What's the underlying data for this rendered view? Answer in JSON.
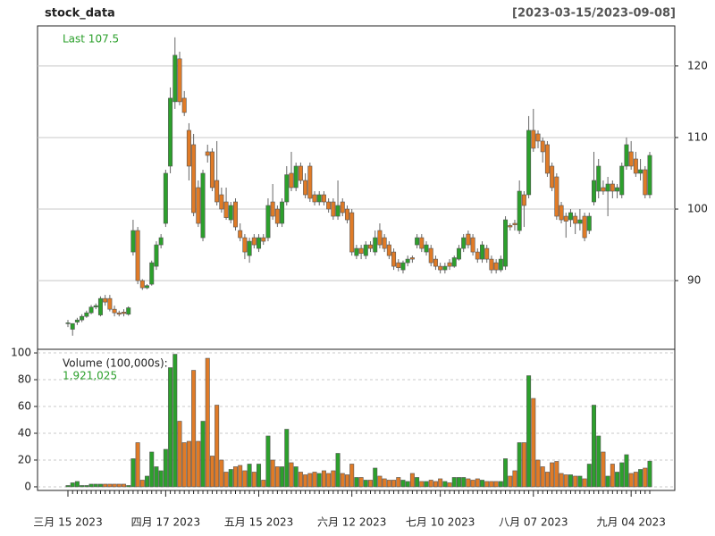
{
  "chart_data": {
    "type": "candlestick",
    "title": "stock_data",
    "subtitle": "[2023-03-15/2023-09-08]",
    "last_label": "Last 107.5",
    "categories": [
      "三月 15 2023",
      null,
      null,
      null,
      null,
      null,
      null,
      null,
      null,
      null,
      null,
      null,
      null,
      null,
      null,
      null,
      null,
      null,
      null,
      null,
      null,
      "四月 17 2023",
      null,
      null,
      null,
      null,
      null,
      null,
      null,
      null,
      null,
      null,
      null,
      null,
      null,
      null,
      null,
      null,
      null,
      null,
      null,
      "五月 15 2023",
      null,
      null,
      null,
      null,
      null,
      null,
      null,
      null,
      null,
      null,
      null,
      null,
      null,
      null,
      null,
      null,
      null,
      null,
      null,
      "六月 12 2023",
      null,
      null,
      null,
      null,
      null,
      null,
      null,
      null,
      null,
      null,
      null,
      null,
      null,
      null,
      null,
      null,
      null,
      null,
      "七月 10 2023",
      null,
      null,
      null,
      null,
      null,
      null,
      null,
      null,
      null,
      null,
      null,
      null,
      null,
      null,
      null,
      null,
      null,
      null,
      null,
      "八月 07 2023",
      null,
      null,
      null,
      null,
      null,
      null,
      null,
      null,
      null,
      null,
      null,
      null,
      null,
      null,
      null,
      null,
      null,
      null,
      null,
      null,
      "九月 04 2023",
      null,
      null,
      null,
      null
    ],
    "open": [
      84,
      83.2,
      84.2,
      84.5,
      85,
      85.5,
      86.3,
      85.2,
      87.5,
      87.5,
      86,
      85.5,
      85.6,
      85.3,
      94,
      97,
      90,
      89,
      89.5,
      92,
      95,
      98,
      106,
      115,
      121,
      115.5,
      111,
      109,
      103,
      96,
      108,
      108,
      104,
      102,
      101,
      98.5,
      101,
      97,
      96,
      93.5,
      96,
      94.5,
      96,
      96,
      101,
      100,
      98,
      101,
      105,
      103,
      106,
      104,
      106,
      102,
      101,
      102,
      101,
      101,
      99,
      101,
      100,
      99.5,
      93.5,
      94.5,
      93.5,
      95,
      94,
      97,
      96,
      95,
      94,
      92.5,
      91.5,
      92.5,
      93.2,
      95,
      96,
      94,
      94.5,
      93,
      92,
      91.5,
      92.5,
      92,
      93,
      94.5,
      96.5,
      96,
      94,
      93,
      94.5,
      93,
      92.5,
      91.5,
      92,
      97.7,
      98,
      97,
      102,
      102,
      111,
      110.5,
      109.5,
      109,
      106,
      104.5,
      100.5,
      99,
      98.5,
      99,
      98,
      99,
      97,
      101,
      102.5,
      103,
      102.5,
      103.5,
      102.5,
      102,
      106,
      108,
      107,
      105,
      105.5,
      102
    ],
    "high": [
      84.5,
      84,
      84.8,
      85.3,
      85.8,
      86.6,
      86.8,
      87.8,
      88,
      88,
      86.5,
      85.8,
      86,
      86.4,
      98.5,
      97.5,
      90.2,
      89.5,
      92.8,
      95.5,
      96.5,
      105.5,
      117,
      124,
      122,
      116.5,
      112,
      110.5,
      104,
      105.5,
      109,
      108.5,
      109.5,
      103,
      103,
      101,
      101.5,
      98,
      96.5,
      96,
      96.5,
      96.5,
      96.5,
      101.5,
      103.5,
      100.5,
      101.5,
      106,
      108,
      106.5,
      106.5,
      105,
      106.5,
      102.5,
      102.5,
      102.5,
      101.5,
      101.5,
      104,
      101.5,
      100.5,
      100,
      95,
      95,
      95.5,
      95.5,
      97,
      98,
      96.5,
      95.5,
      94.5,
      93,
      92.8,
      93.5,
      93.5,
      96.5,
      96.5,
      95.5,
      95,
      93.5,
      92.5,
      92.5,
      93,
      93.5,
      95,
      96.5,
      97,
      96.5,
      94.5,
      95.5,
      95,
      93.5,
      93,
      93.5,
      99,
      98,
      98.5,
      104,
      102.5,
      113,
      114,
      111,
      110,
      109.5,
      106.5,
      105,
      101,
      99.5,
      100,
      99.5,
      100,
      99.5,
      99.5,
      108,
      107,
      104,
      104.5,
      104,
      103.5,
      106.5,
      110,
      109.5,
      108,
      107,
      106,
      108
    ],
    "low": [
      83.5,
      82.3,
      83.8,
      84.2,
      84.8,
      85.3,
      86,
      85,
      86.5,
      85.7,
      85,
      85,
      85,
      85.1,
      93.5,
      89.5,
      88.7,
      88.8,
      89.3,
      91.5,
      94.5,
      97.5,
      105,
      114,
      114.5,
      113,
      104,
      99,
      97.5,
      95.5,
      106.5,
      102.5,
      100.5,
      99.5,
      98.5,
      98,
      97,
      95.5,
      93,
      92.5,
      94.5,
      94,
      95,
      95.5,
      98.5,
      97.5,
      97.5,
      100.5,
      102.5,
      102.5,
      103.5,
      101.5,
      101,
      100.5,
      100.5,
      100.5,
      99.5,
      98.5,
      98.5,
      99,
      98,
      93.5,
      93,
      93,
      93,
      94,
      93.5,
      94.5,
      94,
      93,
      91.5,
      91.3,
      91,
      92,
      92.5,
      94.5,
      94,
      93.5,
      92,
      91.5,
      91,
      91,
      91.5,
      91.8,
      92.8,
      94,
      94.5,
      93.5,
      92.5,
      92.5,
      92.5,
      91,
      91,
      91.2,
      91.5,
      97,
      97,
      96.5,
      97.5,
      101.5,
      108,
      108.5,
      106.5,
      104.5,
      102.5,
      98.5,
      98,
      96,
      97.5,
      96.5,
      97,
      95.5,
      96.5,
      100.5,
      101.5,
      102,
      99,
      101.5,
      101.5,
      101.5,
      105.5,
      105.5,
      104.5,
      104,
      101.5,
      101.5
    ],
    "close": [
      84.1,
      84,
      84.5,
      85,
      85.5,
      86.3,
      86.5,
      87.5,
      87,
      86,
      85.5,
      85.3,
      85.4,
      86.2,
      97,
      90,
      89,
      89.3,
      92.5,
      95,
      96,
      105,
      115.5,
      121.5,
      115,
      113.5,
      106,
      99.5,
      98,
      105,
      107.5,
      103,
      101,
      100,
      98.8,
      100.5,
      97.5,
      96,
      94,
      95.5,
      95,
      96,
      95.5,
      100.5,
      99,
      98,
      101,
      104.8,
      103,
      106,
      104,
      102,
      101.5,
      101,
      102,
      101,
      100,
      99,
      100.5,
      99.5,
      98.5,
      94,
      94.5,
      93.8,
      95,
      94.5,
      96,
      95,
      94.5,
      93.5,
      92,
      91.8,
      92.5,
      93,
      93,
      96,
      94.5,
      95,
      92.5,
      92,
      91.5,
      92,
      92,
      93.2,
      94.5,
      96,
      95,
      94,
      93,
      95,
      93,
      91.5,
      91.5,
      93,
      98.5,
      97.5,
      97.8,
      102.5,
      100.5,
      111,
      108.5,
      109.5,
      108,
      105,
      103,
      99,
      98.5,
      98.3,
      99.5,
      98,
      98.5,
      96,
      99,
      104,
      106,
      102.5,
      103.5,
      102.5,
      103,
      106,
      109,
      106,
      105,
      105.5,
      102,
      107.5
    ],
    "up_color": "#2ca02c",
    "down_color": "#e07b27",
    "ylim": [
      80.4,
      125.6
    ],
    "yticks": [
      90,
      100,
      110,
      120
    ],
    "grid": true,
    "volume": {
      "label": "Volume (100,000s):",
      "last_label": "1,921,025",
      "values": [
        1,
        3,
        4,
        1,
        1,
        2,
        2,
        2,
        2,
        2,
        2,
        2,
        2,
        1,
        21,
        33,
        5,
        8,
        26,
        15,
        12,
        28,
        89,
        99,
        49,
        33,
        34,
        87,
        34,
        49,
        96,
        23,
        61,
        20,
        11,
        13,
        15,
        16,
        12,
        17,
        11,
        17,
        5,
        38,
        20,
        15,
        15,
        43,
        18,
        15,
        11,
        9,
        10,
        11,
        10,
        12,
        10,
        12,
        25,
        10,
        9,
        17,
        7,
        7,
        5,
        5,
        14,
        8,
        6,
        5,
        5,
        7,
        5,
        4,
        10,
        7,
        4,
        4,
        5,
        4,
        6,
        4,
        3,
        7,
        7,
        7,
        6,
        5,
        6,
        5,
        4,
        4,
        4,
        4,
        21,
        8,
        12,
        33,
        33,
        83,
        66,
        20,
        15,
        11,
        18,
        19,
        10,
        9,
        9,
        8,
        8,
        6,
        17,
        61,
        38,
        26,
        8,
        17,
        11,
        18,
        24,
        10,
        11,
        13,
        14,
        19.21025
      ],
      "ylim": [
        -2.7,
        102.7
      ],
      "yticks": [
        0,
        20,
        40,
        60,
        80,
        100
      ]
    }
  }
}
